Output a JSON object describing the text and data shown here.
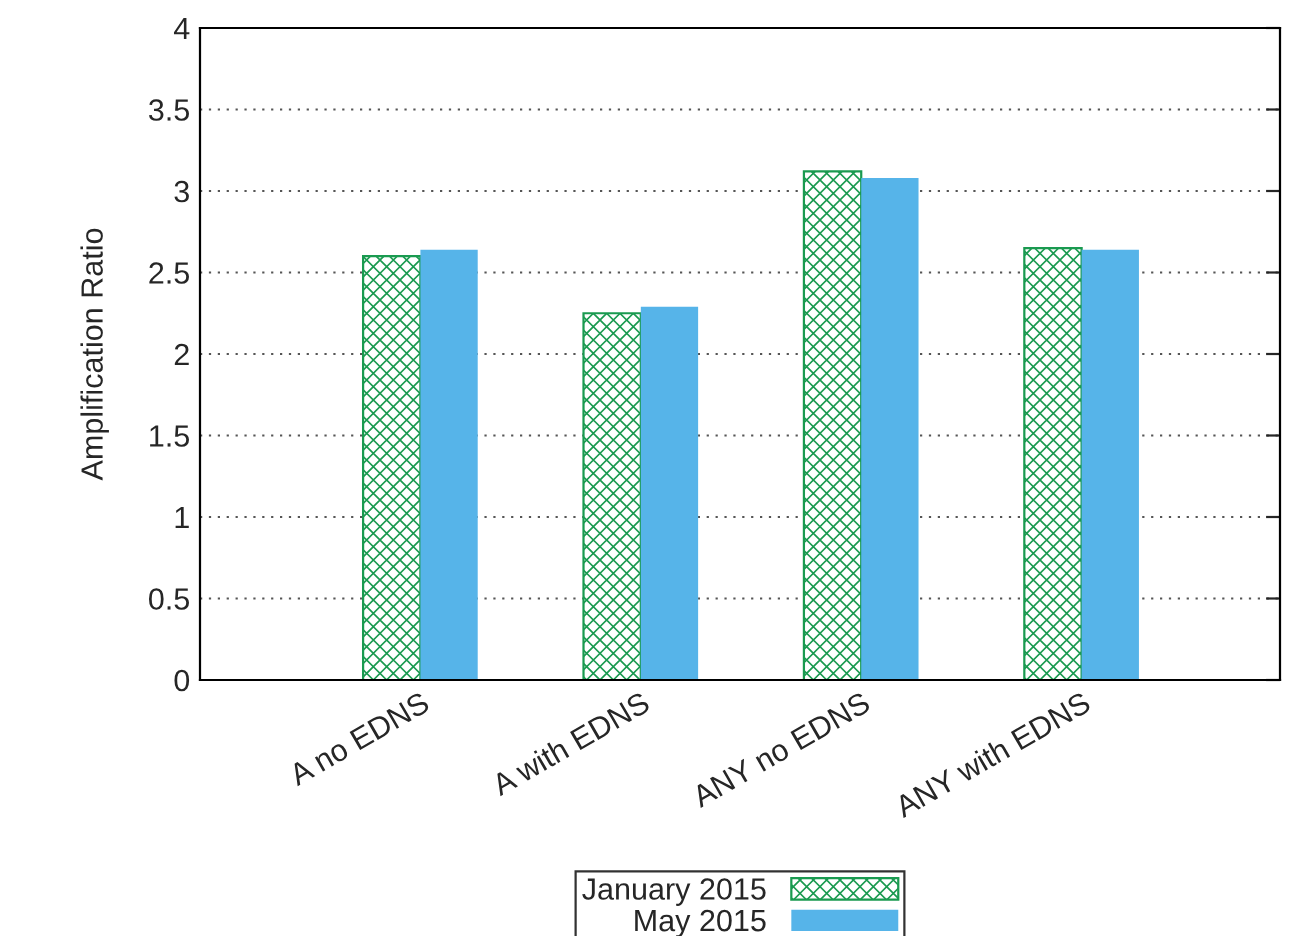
{
  "chart_data": {
    "type": "bar",
    "ylabel": "Amplification Ratio",
    "categories": [
      "A no EDNS",
      "A with EDNS",
      "ANY no EDNS",
      "ANY with EDNS"
    ],
    "series": [
      {
        "name": "January 2015",
        "color": "#1a9a50",
        "values": [
          2.6,
          2.25,
          3.12,
          2.65
        ]
      },
      {
        "name": "May 2015",
        "color": "#56b4e9",
        "values": [
          2.64,
          2.29,
          3.08,
          2.64
        ]
      }
    ],
    "ylim": [
      0,
      4
    ],
    "yticks": [
      0,
      0.5,
      1,
      1.5,
      2,
      2.5,
      3,
      3.5,
      4
    ],
    "grid": "y",
    "legend": "bottom"
  }
}
